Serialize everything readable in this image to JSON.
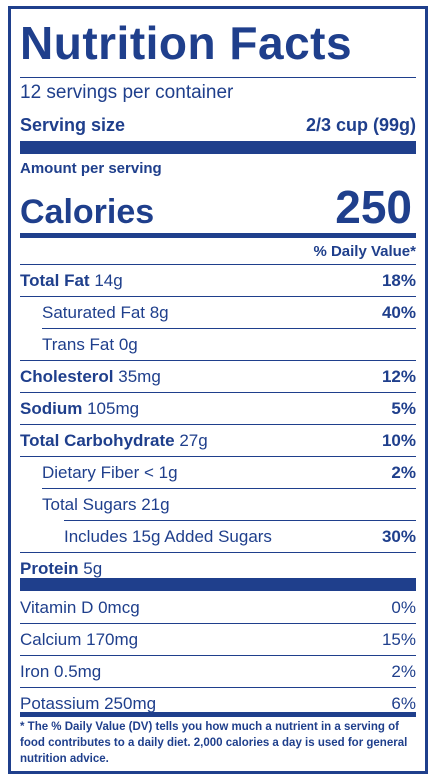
{
  "title": "Nutrition Facts",
  "servings_per_container": "12 servings per container",
  "serving_size": {
    "label": "Serving size",
    "value": "2/3 cup (99g)"
  },
  "amount_per_serving": "Amount per serving",
  "calories": {
    "label": "Calories",
    "value": "250"
  },
  "daily_value_header": "% Daily Value*",
  "nutrients": [
    {
      "name": "Total Fat",
      "amount": "14g",
      "dv": "18%"
    },
    {
      "name": "Saturated Fat 8g",
      "amount": "",
      "dv": "40%"
    },
    {
      "name": "Trans Fat 0g",
      "amount": "",
      "dv": ""
    },
    {
      "name": "Cholesterol",
      "amount": "35mg",
      "dv": "12%"
    },
    {
      "name": "Sodium",
      "amount": "105mg",
      "dv": "5%"
    },
    {
      "name": "Total Carbohydrate",
      "amount": "27g",
      "dv": "10%"
    },
    {
      "name": "Dietary Fiber < 1g",
      "amount": "",
      "dv": "2%"
    },
    {
      "name": "Total Sugars 21g",
      "amount": "",
      "dv": ""
    },
    {
      "name": "Includes 15g Added Sugars",
      "amount": "",
      "dv": "30%"
    },
    {
      "name": "Protein",
      "amount": "5g",
      "dv": ""
    }
  ],
  "vitamins": [
    {
      "name": "Vitamin D 0mcg",
      "dv": "0%"
    },
    {
      "name": "Calcium 170mg",
      "dv": "15%"
    },
    {
      "name": "Iron 0.5mg",
      "dv": "2%"
    },
    {
      "name": "Potassium 250mg",
      "dv": "6%"
    }
  ],
  "footnote": "* The % Daily Value (DV) tells you how much a nutrient in a serving of food contributes to a daily diet. 2,000 calories a day is used for general nutrition advice.",
  "colors": {
    "ink": "#1f3f8c",
    "background": "#ffffff"
  }
}
